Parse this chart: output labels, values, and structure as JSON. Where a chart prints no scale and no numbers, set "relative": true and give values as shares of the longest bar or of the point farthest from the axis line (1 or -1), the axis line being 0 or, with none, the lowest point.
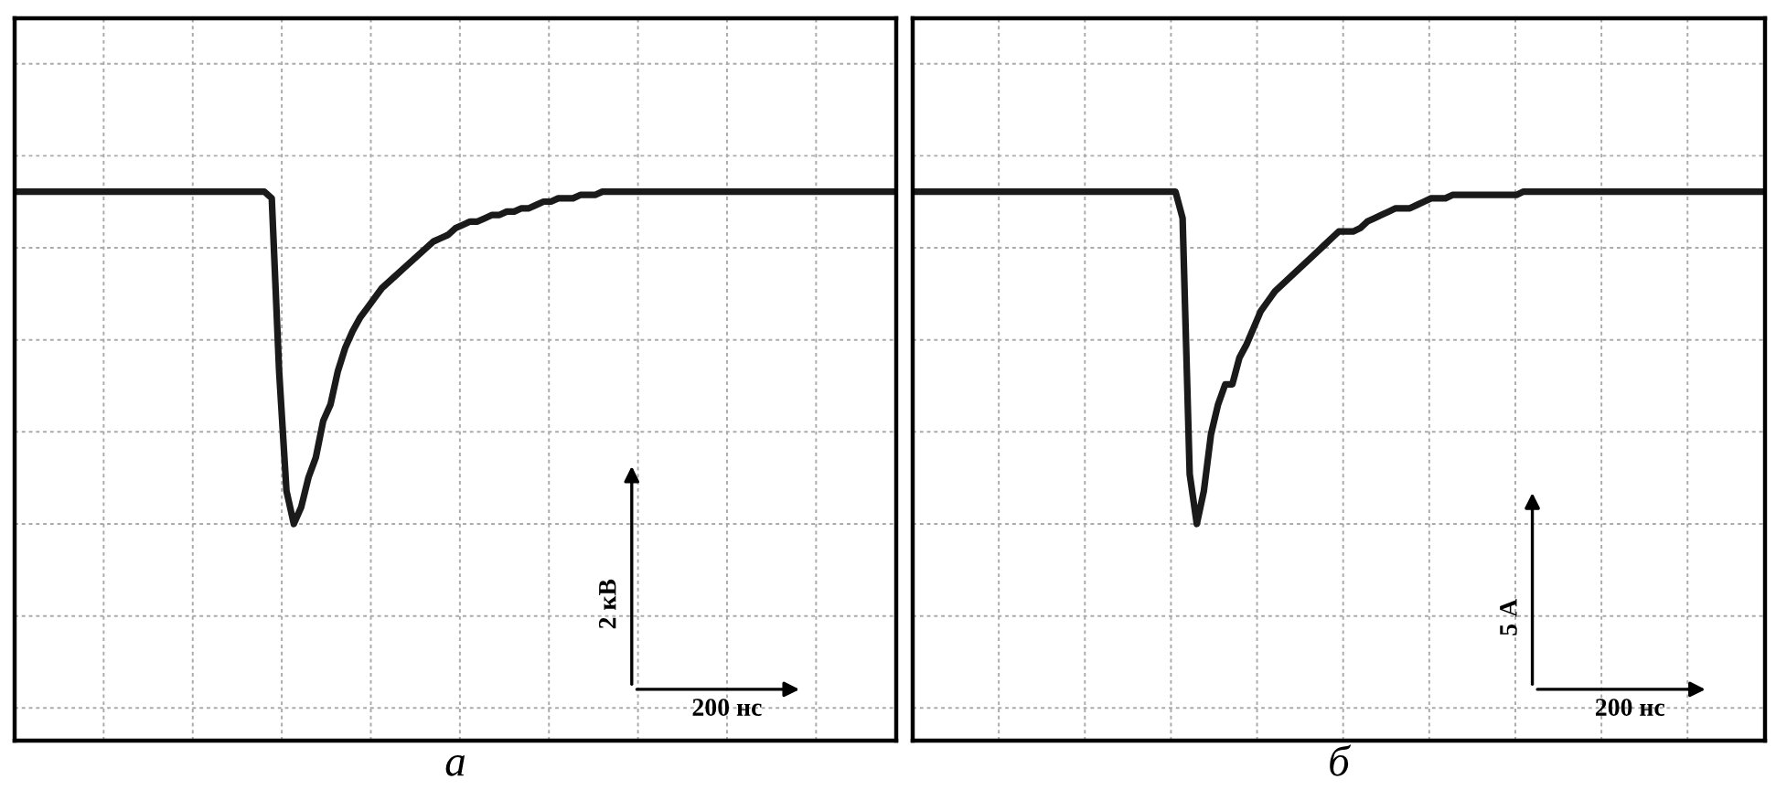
{
  "chart_data": [
    {
      "type": "line",
      "relative": true,
      "xlabel": "а",
      "categories": [
        null,
        null,
        null,
        null,
        null,
        null,
        null,
        null,
        null,
        null,
        null,
        null,
        null,
        null,
        null,
        null,
        null,
        null,
        null,
        null,
        null,
        null,
        null,
        null,
        null,
        null,
        null,
        null,
        null,
        null,
        null,
        null,
        null,
        null,
        null,
        null,
        null,
        null,
        null,
        null,
        null,
        null,
        null,
        null,
        null,
        null,
        null,
        null,
        null,
        null,
        null,
        null,
        null,
        null,
        null,
        null,
        null,
        null,
        null,
        null,
        null,
        null,
        null,
        null,
        null,
        null,
        null,
        null,
        null,
        null,
        null,
        null,
        null,
        null,
        null,
        null,
        null,
        null,
        null,
        null,
        null,
        null,
        null,
        null,
        null,
        null,
        null,
        null,
        null,
        null,
        null,
        null,
        null,
        null,
        null,
        null,
        null,
        null,
        null,
        null,
        null,
        null,
        null,
        null,
        null,
        null,
        null,
        null,
        null,
        null,
        null,
        null,
        null,
        null,
        null,
        null,
        null,
        null,
        null,
        null,
        null
      ],
      "series": [
        {
          "color": "#1a1a1a",
          "values": [
            1,
            1,
            1,
            1,
            1,
            1,
            1,
            1,
            1,
            1,
            1,
            1,
            1,
            1,
            1,
            1,
            1,
            1,
            1,
            1,
            1,
            1,
            1,
            1,
            1,
            1,
            1,
            1,
            1,
            1,
            1,
            1,
            1,
            1,
            1,
            0.98,
            0.46,
            0.1,
            0,
            0.05,
            0.14,
            0.2,
            0.31,
            0.36,
            0.46,
            0.53,
            0.58,
            0.62,
            0.65,
            0.68,
            0.71,
            0.73,
            0.75,
            0.77,
            0.79,
            0.81,
            0.83,
            0.85,
            0.86,
            0.87,
            0.89,
            0.9,
            0.91,
            0.91,
            0.92,
            0.93,
            0.93,
            0.94,
            0.94,
            0.95,
            0.95,
            0.96,
            0.97,
            0.97,
            0.98,
            0.98,
            0.98,
            0.99,
            0.99,
            0.99,
            1,
            1,
            1,
            1,
            1,
            1,
            1,
            1,
            1,
            1,
            1,
            1,
            1,
            1,
            1,
            1,
            1,
            1,
            1,
            1,
            1,
            1,
            1,
            1,
            1,
            1,
            1,
            1,
            1,
            1,
            1,
            1,
            1,
            1,
            1,
            1,
            1,
            1,
            1,
            1,
            1
          ]
        }
      ],
      "annotations": [
        "2 кВ",
        "200 нс"
      ],
      "grid": true,
      "tick_labels": false,
      "marker": "none",
      "line_style": "solid"
    },
    {
      "type": "line",
      "relative": true,
      "xlabel": "б",
      "categories": [
        null,
        null,
        null,
        null,
        null,
        null,
        null,
        null,
        null,
        null,
        null,
        null,
        null,
        null,
        null,
        null,
        null,
        null,
        null,
        null,
        null,
        null,
        null,
        null,
        null,
        null,
        null,
        null,
        null,
        null,
        null,
        null,
        null,
        null,
        null,
        null,
        null,
        null,
        null,
        null,
        null,
        null,
        null,
        null,
        null,
        null,
        null,
        null,
        null,
        null,
        null,
        null,
        null,
        null,
        null,
        null,
        null,
        null,
        null,
        null,
        null,
        null,
        null,
        null,
        null,
        null,
        null,
        null,
        null,
        null,
        null,
        null,
        null,
        null,
        null,
        null,
        null,
        null,
        null,
        null,
        null,
        null,
        null,
        null,
        null,
        null,
        null,
        null,
        null,
        null,
        null,
        null,
        null,
        null,
        null,
        null,
        null,
        null,
        null,
        null,
        null,
        null,
        null,
        null,
        null,
        null,
        null,
        null,
        null,
        null,
        null,
        null,
        null,
        null,
        null,
        null,
        null,
        null,
        null,
        null,
        null
      ],
      "series": [
        {
          "color": "#1a1a1a",
          "values": [
            1,
            1,
            1,
            1,
            1,
            1,
            1,
            1,
            1,
            1,
            1,
            1,
            1,
            1,
            1,
            1,
            1,
            1,
            1,
            1,
            1,
            1,
            1,
            1,
            1,
            1,
            1,
            1,
            1,
            1,
            1,
            1,
            1,
            1,
            1,
            1,
            1,
            1,
            0.92,
            0.15,
            0,
            0.1,
            0.27,
            0.36,
            0.42,
            0.42,
            0.5,
            0.54,
            0.59,
            0.64,
            0.67,
            0.7,
            0.72,
            0.74,
            0.76,
            0.78,
            0.8,
            0.82,
            0.84,
            0.86,
            0.88,
            0.88,
            0.88,
            0.89,
            0.91,
            0.92,
            0.93,
            0.94,
            0.95,
            0.95,
            0.95,
            0.96,
            0.97,
            0.98,
            0.98,
            0.98,
            0.99,
            0.99,
            0.99,
            0.99,
            0.99,
            0.99,
            0.99,
            0.99,
            0.99,
            0.99,
            1,
            1,
            1,
            1,
            1,
            1,
            1,
            1,
            1,
            1,
            1,
            1,
            1,
            1,
            1,
            1,
            1,
            1,
            1,
            1,
            1,
            1,
            1,
            1,
            1,
            1,
            1,
            1,
            1,
            1,
            1,
            1,
            1,
            1,
            1
          ]
        }
      ],
      "annotations": [
        "5 А",
        "200 нс"
      ],
      "grid": true,
      "tick_labels": false,
      "marker": "none",
      "line_style": "solid"
    }
  ]
}
